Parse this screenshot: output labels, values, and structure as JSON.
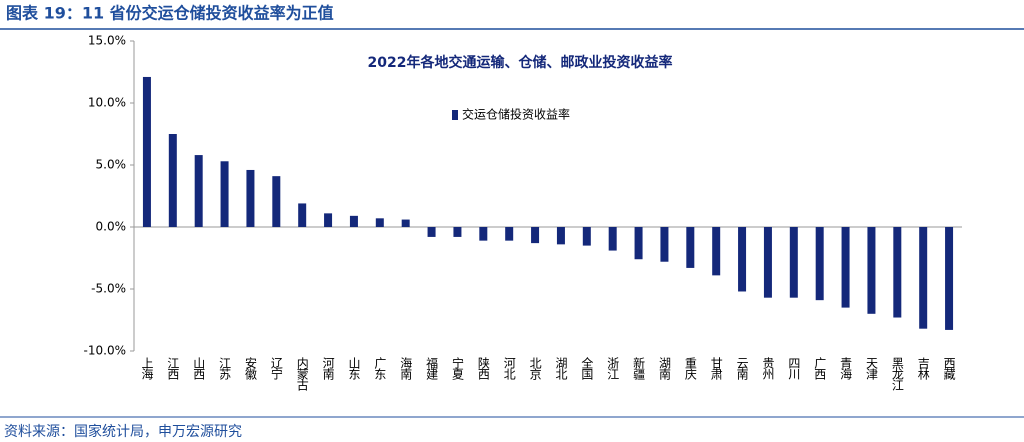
{
  "header": "图表 19：11 省份交运仓储投资收益率为正值",
  "source": "资料来源：国家统计局，申万宏源研究",
  "chart_data": {
    "type": "bar",
    "title": "2022年各地交通运输、仓储、邮政业投资收益率",
    "categories": [
      "上海",
      "江西",
      "山西",
      "江苏",
      "安徽",
      "辽宁",
      "内蒙古",
      "河南",
      "山东",
      "广东",
      "海南",
      "福建",
      "宁夏",
      "陕西",
      "河北",
      "北京",
      "湖北",
      "全国",
      "浙江",
      "新疆",
      "湖南",
      "重庆",
      "甘肃",
      "云南",
      "贵州",
      "四川",
      "广西",
      "青海",
      "天津",
      "黑龙江",
      "吉林",
      "西藏"
    ],
    "series": [
      {
        "name": "交运仓储投资收益率",
        "color": "#14287a",
        "values": [
          12.1,
          7.5,
          5.8,
          5.3,
          4.6,
          4.1,
          1.9,
          1.1,
          0.9,
          0.7,
          0.6,
          -0.8,
          -0.8,
          -1.1,
          -1.1,
          -1.3,
          -1.4,
          -1.5,
          -1.9,
          -2.6,
          -2.8,
          -3.3,
          -3.9,
          -5.2,
          -5.7,
          -5.7,
          -5.9,
          -6.5,
          -7.0,
          -7.3,
          -8.2,
          -8.3
        ]
      }
    ],
    "ylim": [
      -10,
      15
    ],
    "yticks": [
      {
        "value": -10,
        "label": "-10.0%"
      },
      {
        "value": -5,
        "label": "-5.0%"
      },
      {
        "value": 0,
        "label": "0.0%"
      },
      {
        "value": 5,
        "label": "5.0%"
      },
      {
        "value": 10,
        "label": "10.0%"
      },
      {
        "value": 15,
        "label": "15.0%"
      }
    ],
    "grid": false,
    "legend": "top"
  }
}
